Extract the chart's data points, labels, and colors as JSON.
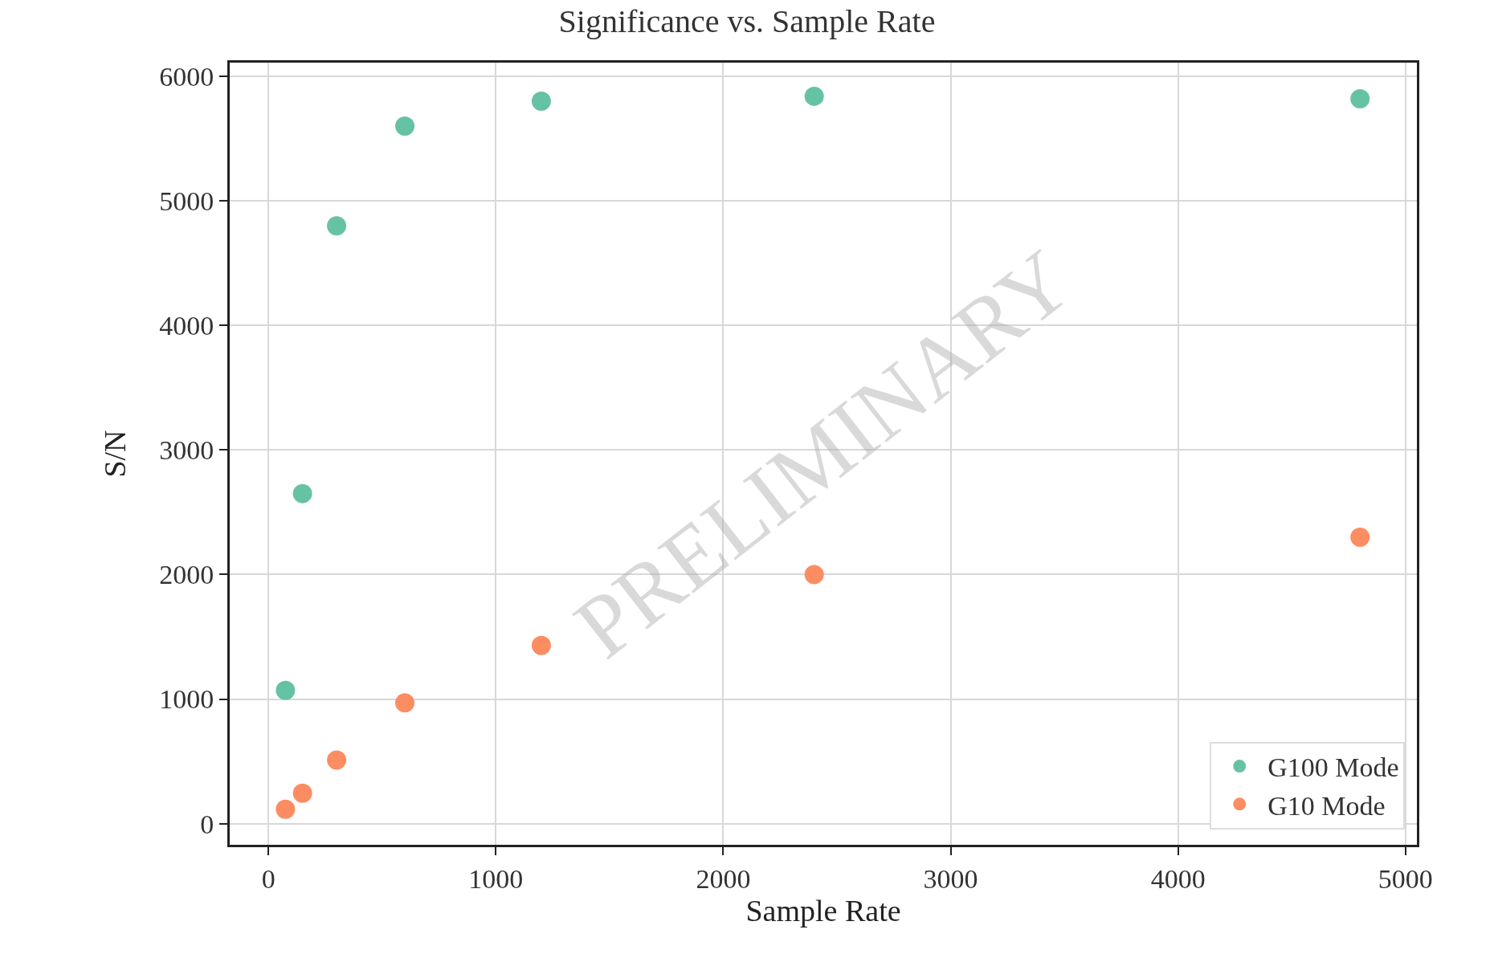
{
  "chart_data": {
    "type": "scatter",
    "title": "Significance vs. Sample Rate",
    "xlabel": "Sample Rate",
    "ylabel": "S/N",
    "series": [
      {
        "name": "G100 Mode",
        "color": "#66c2a5",
        "x": [
          75,
          150,
          300,
          600,
          1200,
          2400,
          4800
        ],
        "values": [
          1070,
          2650,
          4800,
          5600,
          5800,
          5840,
          5820
        ]
      },
      {
        "name": "G10 Mode",
        "color": "#fc8d62",
        "x": [
          75,
          150,
          300,
          600,
          1200,
          2400,
          4800
        ],
        "values": [
          115,
          245,
          510,
          970,
          1430,
          2000,
          2300
        ]
      }
    ],
    "xlim": [
      -170,
      5050
    ],
    "ylim": [
      -170,
      6110
    ],
    "xticks": [
      0,
      1000,
      2000,
      3000,
      4000,
      5000
    ],
    "yticks": [
      0,
      1000,
      2000,
      3000,
      4000,
      5000,
      6000
    ],
    "grid": true,
    "legend": "bottom right",
    "marker": "circle",
    "annotations": [
      "PRELIMINARY"
    ]
  }
}
